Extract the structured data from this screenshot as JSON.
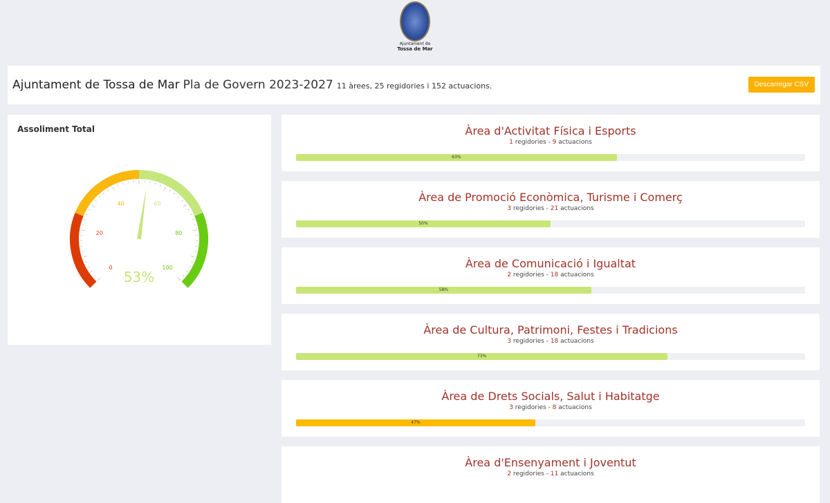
{
  "logo": {
    "line1": "Ajuntament de",
    "line2": "Tossa de Mar"
  },
  "header": {
    "org": "Ajuntament de Tossa de Mar",
    "plan": "Pla de Govern 2023-2027",
    "summary": "11 àrees, 25 regidories i 152 actuacions.",
    "csv_button": "Descarregar CSV"
  },
  "gauge": {
    "title": "Assoliment Total",
    "value": 53,
    "value_label": "53%",
    "ticks": [
      "0",
      "20",
      "40",
      "60",
      "80",
      "100"
    ],
    "bands": [
      {
        "from": 0,
        "to": 25,
        "color": "#dc3d06"
      },
      {
        "from": 25,
        "to": 50,
        "color": "#f9b70f"
      },
      {
        "from": 50,
        "to": 75,
        "color": "#c4e67c"
      },
      {
        "from": 75,
        "to": 100,
        "color": "#6acb14"
      }
    ]
  },
  "areas": [
    {
      "name": "Àrea d'Activitat Física i Esports",
      "regidories": "1",
      "actuacions": "9",
      "sep": " regidories - ",
      "unit": " actuacions",
      "percent": 63,
      "label": "63%",
      "color": "#c7e676"
    },
    {
      "name": "Àrea de Promoció Econòmica, Turisme i Comerç",
      "regidories": "3",
      "actuacions": "21",
      "sep": " regidories - ",
      "unit": " actuacions",
      "percent": 50,
      "label": "50%",
      "color": "#c7e676"
    },
    {
      "name": "Àrea de Comunicació i Igualtat",
      "regidories": "2",
      "actuacions": "18",
      "sep": " regidories - ",
      "unit": " actuacions",
      "percent": 58,
      "label": "58%",
      "color": "#c7e676"
    },
    {
      "name": "Àrea de Cultura, Patrimoni, Festes i Tradicions",
      "regidories": "3",
      "actuacions": "18",
      "sep": " regidories - ",
      "unit": " actuacions",
      "percent": 73,
      "label": "73%",
      "color": "#c7e676"
    },
    {
      "name": "Àrea de Drets Socials, Salut i Habitatge",
      "regidories": "3",
      "actuacions": "8",
      "sep": " regidories - ",
      "unit": " actuacions",
      "percent": 47,
      "label": "47%",
      "color": "#fbb900"
    },
    {
      "name": "Àrea d'Ensenyament i Joventut",
      "regidories": "2",
      "actuacions": "11",
      "sep": " regidories - ",
      "unit": " actuacions",
      "percent": null,
      "label": "",
      "color": "#c7e676"
    }
  ]
}
